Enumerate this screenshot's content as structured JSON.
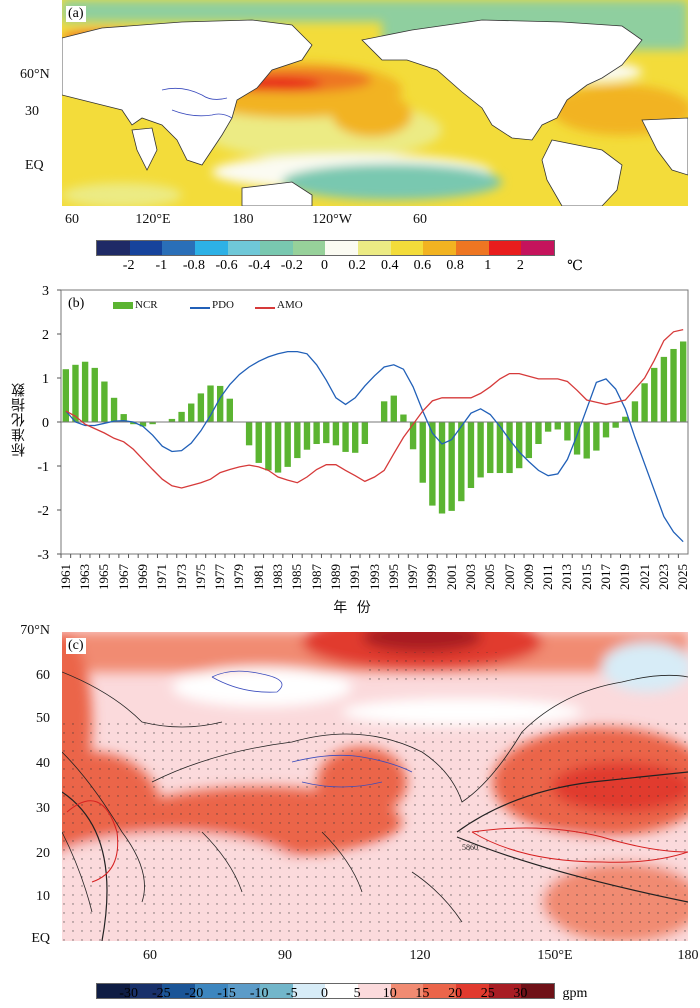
{
  "panel_a": {
    "tag": "(a)",
    "y_labels": [
      "60°N",
      "30",
      "EQ"
    ],
    "x_labels": [
      "60",
      "120°E",
      "180",
      "120°W",
      "60"
    ],
    "colorbar": {
      "colors": [
        "#1f2a66",
        "#16439c",
        "#2a6fb8",
        "#2db1e6",
        "#6fc8d8",
        "#79c8b0",
        "#97d19a",
        "#fbfbf2",
        "#eceb84",
        "#f3dc3a",
        "#f2b321",
        "#ee7622",
        "#e81d1d",
        "#c5135c"
      ],
      "labels": [
        "-2",
        "-1",
        "-0.8",
        "-0.6",
        "-0.4",
        "-0.2",
        "0",
        "0.2",
        "0.4",
        "0.6",
        "0.8",
        "1",
        "2"
      ],
      "unit": "℃"
    }
  },
  "chart_data": {
    "type": "bar+line",
    "tag": "(b)",
    "ylabel": "标准化指数",
    "xlabel": "年 份",
    "ylim": [
      -3,
      3
    ],
    "yticks": [
      -3,
      -2,
      -1,
      0,
      1,
      2,
      3
    ],
    "x": [
      1961,
      1962,
      1963,
      1964,
      1965,
      1966,
      1967,
      1968,
      1969,
      1970,
      1971,
      1972,
      1973,
      1974,
      1975,
      1976,
      1977,
      1978,
      1979,
      1980,
      1981,
      1982,
      1983,
      1984,
      1985,
      1986,
      1987,
      1988,
      1989,
      1990,
      1991,
      1992,
      1993,
      1994,
      1995,
      1996,
      1997,
      1998,
      1999,
      2000,
      2001,
      2002,
      2003,
      2004,
      2005,
      2006,
      2007,
      2008,
      2009,
      2010,
      2011,
      2012,
      2013,
      2014,
      2015,
      2016,
      2017,
      2018,
      2019,
      2020,
      2021,
      2022,
      2023,
      2024,
      2025
    ],
    "xtick_labels": [
      "1961",
      "1963",
      "1965",
      "1967",
      "1969",
      "1971",
      "1973",
      "1975",
      "1977",
      "1979",
      "1981",
      "1983",
      "1985",
      "1987",
      "1989",
      "1991",
      "1993",
      "1995",
      "1997",
      "1999",
      "2001",
      "2003",
      "2005",
      "2007",
      "2009",
      "2011",
      "2013",
      "2015",
      "2017",
      "2019",
      "2021",
      "2023",
      "2025"
    ],
    "legend_position": "top-left",
    "series": [
      {
        "name": "NCR",
        "kind": "bar",
        "color": "#5bb431",
        "values": [
          1.2,
          1.3,
          1.37,
          1.23,
          0.92,
          0.55,
          0.18,
          -0.05,
          -0.1,
          -0.05,
          0,
          0.07,
          0.23,
          0.42,
          0.65,
          0.83,
          0.82,
          0.53,
          0,
          -0.53,
          -0.93,
          -1.1,
          -1.15,
          -1.02,
          -0.82,
          -0.63,
          -0.5,
          -0.48,
          -0.53,
          -0.68,
          -0.7,
          -0.5,
          0,
          0.47,
          0.6,
          0.17,
          -0.62,
          -1.38,
          -1.9,
          -2.08,
          -2.02,
          -1.8,
          -1.5,
          -1.26,
          -1.16,
          -1.16,
          -1.16,
          -1.05,
          -0.82,
          -0.5,
          -0.22,
          -0.17,
          -0.42,
          -0.74,
          -0.83,
          -0.65,
          -0.35,
          -0.13,
          0.12,
          0.47,
          0.88,
          1.23,
          1.48,
          1.66,
          1.83
        ]
      },
      {
        "name": "PDO",
        "kind": "line",
        "color": "#2160b8",
        "values": [
          0.25,
          0.0,
          -0.08,
          -0.08,
          -0.03,
          0.02,
          0.03,
          0.0,
          -0.1,
          -0.3,
          -0.55,
          -0.67,
          -0.65,
          -0.48,
          -0.2,
          0.15,
          0.55,
          0.85,
          1.08,
          1.25,
          1.38,
          1.48,
          1.55,
          1.6,
          1.6,
          1.55,
          1.3,
          0.95,
          0.55,
          0.4,
          0.55,
          0.82,
          1.05,
          1.25,
          1.3,
          1.2,
          0.8,
          0.25,
          -0.25,
          -0.5,
          -0.4,
          -0.1,
          0.2,
          0.3,
          0.17,
          -0.1,
          -0.4,
          -0.68,
          -0.9,
          -1.1,
          -1.22,
          -1.18,
          -0.85,
          -0.3,
          0.3,
          0.9,
          0.98,
          0.75,
          0.3,
          -0.35,
          -0.95,
          -1.55,
          -2.15,
          -2.5,
          -2.72
        ]
      },
      {
        "name": "AMO",
        "kind": "line",
        "color": "#d63a3a",
        "values": [
          0.25,
          0.13,
          -0.05,
          -0.15,
          -0.25,
          -0.37,
          -0.45,
          -0.62,
          -0.85,
          -1.08,
          -1.3,
          -1.45,
          -1.5,
          -1.44,
          -1.38,
          -1.3,
          -1.15,
          -1.08,
          -1.02,
          -0.98,
          -1.02,
          -1.1,
          -1.25,
          -1.32,
          -1.38,
          -1.25,
          -1.08,
          -0.97,
          -0.97,
          -1.1,
          -1.22,
          -1.35,
          -1.25,
          -1.1,
          -0.72,
          -0.35,
          -0.05,
          0.25,
          0.48,
          0.55,
          0.55,
          0.55,
          0.55,
          0.65,
          0.8,
          0.98,
          1.1,
          1.1,
          1.04,
          0.98,
          0.98,
          0.98,
          0.92,
          0.72,
          0.5,
          0.45,
          0.4,
          0.45,
          0.5,
          0.75,
          1.0,
          1.4,
          1.85,
          2.05,
          2.1
        ]
      }
    ]
  },
  "panel_c": {
    "tag": "(c)",
    "y_labels": [
      "70°N",
      "60",
      "50",
      "40",
      "30",
      "20",
      "10",
      "EQ"
    ],
    "x_labels": [
      "60",
      "90",
      "120",
      "150°E",
      "180"
    ],
    "contour_labels": [
      "5860",
      "5880"
    ],
    "colorbar": {
      "colors": [
        "#0f1d44",
        "#18306a",
        "#1b5597",
        "#3d86bf",
        "#5b9bc8",
        "#72b6ca",
        "#d7ecf7",
        "#ffffff",
        "#fbdadc",
        "#f18b72",
        "#eb654a",
        "#e13a2e",
        "#a81d24",
        "#6f1117"
      ],
      "labels": [
        "-30",
        "-25",
        "-20",
        "-15",
        "-10",
        "-5",
        "0",
        "5",
        "10",
        "15",
        "20",
        "25",
        "30"
      ],
      "unit": "gpm"
    }
  }
}
